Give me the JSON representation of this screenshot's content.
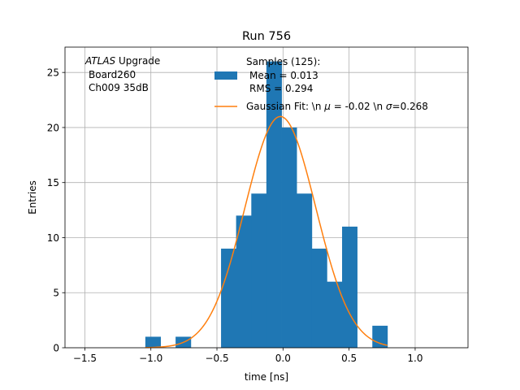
{
  "chart_data": {
    "type": "bar",
    "title": "Run 756",
    "xlabel": "time [ns]",
    "ylabel": "Entries",
    "xlim": [
      -1.65,
      1.4
    ],
    "ylim": [
      0,
      27.3
    ],
    "grid": true,
    "x_ticks": [
      -1.5,
      -1.0,
      -0.5,
      0.0,
      0.5,
      1.0
    ],
    "x_tick_labels": [
      "−1.5",
      "−1.0",
      "−0.5",
      "0.0",
      "0.5",
      "1.0"
    ],
    "y_ticks": [
      0,
      5,
      10,
      15,
      20,
      25
    ],
    "y_tick_labels": [
      "0",
      "5",
      "10",
      "15",
      "20",
      "25"
    ],
    "annotation": {
      "line1_italic": "ATLAS",
      "line1_rest": " Upgrade",
      "line2": "Board260",
      "line3": "Ch009 35dB"
    },
    "legend": {
      "position": "top-right",
      "entries": [
        {
          "kind": "histogram",
          "lines": [
            "Samples (125):",
            "Mean = 0.013",
            "RMS = 0.294"
          ]
        },
        {
          "kind": "fit",
          "prefix": "Gaussian Fit: \\n ",
          "mu_sym": "μ",
          "mu_text": " = -0.02 \\n ",
          "sigma_sym": "σ",
          "sigma_text": "=0.268"
        }
      ]
    },
    "series": [
      {
        "kind": "histogram",
        "color": "#1f77b4",
        "bins": [
          {
            "x0": -1.042,
            "x1": -0.927,
            "count": 1
          },
          {
            "x0": -0.927,
            "x1": -0.813,
            "count": 0
          },
          {
            "x0": -0.813,
            "x1": -0.698,
            "count": 1
          },
          {
            "x0": -0.698,
            "x1": -0.584,
            "count": 0
          },
          {
            "x0": -0.584,
            "x1": -0.469,
            "count": 0
          },
          {
            "x0": -0.469,
            "x1": -0.355,
            "count": 9
          },
          {
            "x0": -0.355,
            "x1": -0.24,
            "count": 12
          },
          {
            "x0": -0.24,
            "x1": -0.126,
            "count": 14
          },
          {
            "x0": -0.126,
            "x1": -0.011,
            "count": 26
          },
          {
            "x0": -0.011,
            "x1": 0.103,
            "count": 20
          },
          {
            "x0": 0.103,
            "x1": 0.218,
            "count": 14
          },
          {
            "x0": 0.218,
            "x1": 0.332,
            "count": 9
          },
          {
            "x0": 0.332,
            "x1": 0.447,
            "count": 6
          },
          {
            "x0": 0.447,
            "x1": 0.561,
            "count": 11
          },
          {
            "x0": 0.561,
            "x1": 0.676,
            "count": 0
          },
          {
            "x0": 0.676,
            "x1": 0.79,
            "count": 2
          }
        ]
      },
      {
        "kind": "gaussian_fit",
        "color": "#ff7f0e",
        "amplitude": 21.0,
        "mu": -0.02,
        "sigma": 0.268,
        "x_range": [
          -1.042,
          0.79
        ]
      }
    ]
  }
}
